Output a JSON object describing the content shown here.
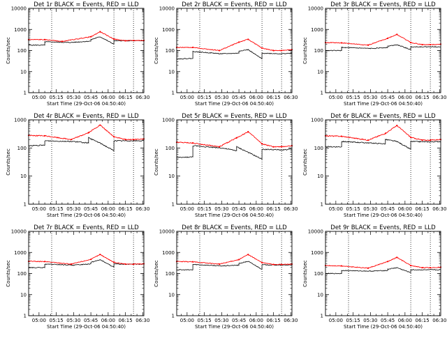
{
  "colors": {
    "events": "#000000",
    "lld": "#ff0000",
    "background": "#ffffff",
    "axes": "#000000"
  },
  "chart_data": [
    {
      "type": "line",
      "title": "Det 1r BLACK = Events, RED = LLD",
      "xlabel": "Start Time (29-Oct-06 04:50:40)",
      "ylabel": "Counts/sec",
      "y_scale": "log",
      "ylim": [
        1,
        10000
      ],
      "xlim": [
        "04:51",
        "06:31"
      ],
      "x_tick_labels": [
        "05:00",
        "05:15",
        "05:30",
        "05:45",
        "06:00",
        "06:15",
        "06:30"
      ],
      "y_tick_labels": [
        "1",
        "10",
        "100",
        "1000",
        "10000"
      ],
      "vlines": [
        "05:11",
        "06:05",
        "06:22"
      ],
      "series": [
        {
          "name": "Events",
          "color": "#000000",
          "x": [
            "04:51",
            "05:05",
            "05:05",
            "05:27",
            "05:45",
            "05:45",
            "05:53",
            "06:05",
            "06:05",
            "06:22",
            "06:31"
          ],
          "y": [
            180,
            180,
            260,
            240,
            280,
            330,
            450,
            200,
            290,
            290,
            290
          ]
        },
        {
          "name": "LLD",
          "color": "#ff0000",
          "x": [
            "04:51",
            "05:05",
            "05:20",
            "05:45",
            "05:53",
            "06:05",
            "06:15",
            "06:22",
            "06:31"
          ],
          "y": [
            330,
            330,
            270,
            450,
            780,
            350,
            290,
            300,
            300
          ]
        }
      ]
    },
    {
      "type": "line",
      "title": "Det 2r BLACK = Events, RED = LLD",
      "xlabel": "Start Time (29-Oct-06 04:50:40)",
      "ylabel": "Counts/sec",
      "y_scale": "log",
      "ylim": [
        1,
        10000
      ],
      "xlim": [
        "04:51",
        "06:31"
      ],
      "x_tick_labels": [
        "05:00",
        "05:15",
        "05:30",
        "05:45",
        "06:00",
        "06:15",
        "06:30"
      ],
      "y_tick_labels": [
        "1",
        "10",
        "100",
        "1000",
        "10000"
      ],
      "vlines": [
        "05:11",
        "06:05",
        "06:22"
      ],
      "series": [
        {
          "name": "Events",
          "color": "#000000",
          "x": [
            "04:51",
            "05:05",
            "05:05",
            "05:30",
            "05:45",
            "05:45",
            "05:53",
            "06:05",
            "06:05",
            "06:22",
            "06:31"
          ],
          "y": [
            40,
            42,
            90,
            70,
            75,
            95,
            110,
            40,
            75,
            70,
            75
          ]
        },
        {
          "name": "LLD",
          "color": "#ff0000",
          "x": [
            "04:51",
            "05:05",
            "05:28",
            "05:45",
            "05:53",
            "06:05",
            "06:15",
            "06:22",
            "06:31"
          ],
          "y": [
            140,
            140,
            100,
            250,
            340,
            130,
            100,
            100,
            110
          ]
        }
      ]
    },
    {
      "type": "line",
      "title": "Det 3r BLACK = Events, RED = LLD",
      "xlabel": "Start Time (29-Oct-06 04:50:40)",
      "ylabel": "Counts/sec",
      "y_scale": "log",
      "ylim": [
        1,
        10000
      ],
      "xlim": [
        "04:51",
        "06:31"
      ],
      "x_tick_labels": [
        "05:00",
        "05:15",
        "05:30",
        "05:45",
        "06:00",
        "06:15",
        "06:30"
      ],
      "y_tick_labels": [
        "1",
        "10",
        "100",
        "1000",
        "10000"
      ],
      "vlines": [
        "05:11",
        "06:05",
        "06:22"
      ],
      "series": [
        {
          "name": "Events",
          "color": "#000000",
          "x": [
            "04:51",
            "05:05",
            "05:05",
            "05:30",
            "05:45",
            "05:45",
            "05:53",
            "06:05",
            "06:05",
            "06:22",
            "06:31"
          ],
          "y": [
            100,
            100,
            140,
            125,
            140,
            160,
            190,
            110,
            150,
            150,
            150
          ]
        },
        {
          "name": "LLD",
          "color": "#ff0000",
          "x": [
            "04:51",
            "05:05",
            "05:28",
            "05:45",
            "05:53",
            "06:05",
            "06:15",
            "06:22",
            "06:31"
          ],
          "y": [
            240,
            230,
            180,
            380,
            580,
            240,
            190,
            190,
            200
          ]
        }
      ]
    },
    {
      "type": "line",
      "title": "Det 4r BLACK = Events, RED = LLD",
      "xlabel": "Start Time (29-Oct-06 04:50:40)",
      "ylabel": "Counts/sec",
      "y_scale": "log",
      "ylim": [
        1,
        1000
      ],
      "xlim": [
        "04:51",
        "06:31"
      ],
      "x_tick_labels": [
        "05:00",
        "05:15",
        "05:30",
        "05:45",
        "06:00",
        "06:15",
        "06:30"
      ],
      "y_tick_labels": [
        "1",
        "10",
        "100",
        "1000"
      ],
      "vlines": [
        "05:11",
        "06:05",
        "06:22"
      ],
      "series": [
        {
          "name": "Events",
          "color": "#000000",
          "x": [
            "04:51",
            "05:05",
            "05:05",
            "05:30",
            "05:43",
            "05:43",
            "05:53",
            "06:05",
            "06:05",
            "06:22",
            "06:31"
          ],
          "y": [
            120,
            125,
            180,
            170,
            150,
            230,
            150,
            80,
            180,
            180,
            180
          ]
        },
        {
          "name": "LLD",
          "color": "#ff0000",
          "x": [
            "04:51",
            "05:05",
            "05:28",
            "05:43",
            "05:53",
            "06:05",
            "06:15",
            "06:22",
            "06:31"
          ],
          "y": [
            280,
            270,
            200,
            350,
            650,
            250,
            200,
            200,
            210
          ]
        }
      ]
    },
    {
      "type": "line",
      "title": "Det 5r BLACK = Events, RED = LLD",
      "xlabel": "Start Time (29-Oct-06 04:50:40)",
      "ylabel": "Counts/sec",
      "y_scale": "log",
      "ylim": [
        1,
        1000
      ],
      "xlim": [
        "04:51",
        "06:31"
      ],
      "x_tick_labels": [
        "05:00",
        "05:15",
        "05:30",
        "05:45",
        "06:00",
        "06:15",
        "06:30"
      ],
      "y_tick_labels": [
        "1",
        "10",
        "100",
        "1000"
      ],
      "vlines": [
        "05:11",
        "06:05",
        "06:22"
      ],
      "series": [
        {
          "name": "Events",
          "color": "#000000",
          "x": [
            "04:51",
            "05:05",
            "05:05",
            "05:30",
            "05:43",
            "05:43",
            "05:53",
            "06:05",
            "06:05",
            "06:22",
            "06:31"
          ],
          "y": [
            45,
            48,
            120,
            100,
            80,
            110,
            70,
            40,
            90,
            85,
            90
          ]
        },
        {
          "name": "LLD",
          "color": "#ff0000",
          "x": [
            "04:51",
            "05:05",
            "05:28",
            "05:43",
            "05:53",
            "06:05",
            "06:15",
            "06:22",
            "06:31"
          ],
          "y": [
            160,
            150,
            110,
            230,
            380,
            140,
            110,
            110,
            120
          ]
        }
      ]
    },
    {
      "type": "line",
      "title": "Det 6r BLACK = Events, RED = LLD",
      "xlabel": "Start Time (29-Oct-06 04:50:40)",
      "ylabel": "Counts/sec",
      "y_scale": "log",
      "ylim": [
        1,
        1000
      ],
      "xlim": [
        "04:51",
        "06:31"
      ],
      "x_tick_labels": [
        "05:00",
        "05:15",
        "05:30",
        "05:45",
        "06:00",
        "06:15",
        "06:30"
      ],
      "y_tick_labels": [
        "1",
        "10",
        "100",
        "1000"
      ],
      "vlines": [
        "05:11",
        "06:05",
        "06:22"
      ],
      "series": [
        {
          "name": "Events",
          "color": "#000000",
          "x": [
            "04:51",
            "05:05",
            "05:05",
            "05:30",
            "05:43",
            "05:43",
            "05:53",
            "06:05",
            "06:05",
            "06:22",
            "06:31"
          ],
          "y": [
            110,
            110,
            170,
            150,
            140,
            200,
            170,
            90,
            170,
            165,
            170
          ]
        },
        {
          "name": "LLD",
          "color": "#ff0000",
          "x": [
            "04:51",
            "05:05",
            "05:28",
            "05:43",
            "05:53",
            "06:05",
            "06:15",
            "06:22",
            "06:31"
          ],
          "y": [
            270,
            260,
            190,
            330,
            630,
            240,
            190,
            190,
            200
          ]
        }
      ]
    },
    {
      "type": "line",
      "title": "Det 7r BLACK = Events, RED = LLD",
      "xlabel": "Start Time (29-Oct-06 04:50:40)",
      "ylabel": "Counts/sec",
      "y_scale": "log",
      "ylim": [
        1,
        10000
      ],
      "xlim": [
        "04:51",
        "06:31"
      ],
      "x_tick_labels": [
        "05:00",
        "05:15",
        "05:30",
        "05:45",
        "06:00",
        "06:15",
        "06:30"
      ],
      "y_tick_labels": [
        "1",
        "10",
        "100",
        "1000",
        "10000"
      ],
      "vlines": [
        "05:11",
        "06:05",
        "06:22"
      ],
      "series": [
        {
          "name": "Events",
          "color": "#000000",
          "x": [
            "04:51",
            "05:05",
            "05:05",
            "05:30",
            "05:45",
            "05:45",
            "05:53",
            "06:05",
            "06:05",
            "06:22",
            "06:31"
          ],
          "y": [
            190,
            190,
            280,
            250,
            290,
            340,
            450,
            200,
            280,
            280,
            280
          ]
        },
        {
          "name": "LLD",
          "color": "#ff0000",
          "x": [
            "04:51",
            "05:05",
            "05:28",
            "05:45",
            "05:53",
            "06:05",
            "06:15",
            "06:22",
            "06:31"
          ],
          "y": [
            380,
            370,
            280,
            470,
            800,
            340,
            280,
            280,
            290
          ]
        }
      ]
    },
    {
      "type": "line",
      "title": "Det 8r BLACK = Events, RED = LLD",
      "xlabel": "Start Time (29-Oct-06 04:50:40)",
      "ylabel": "Counts/sec",
      "y_scale": "log",
      "ylim": [
        1,
        10000
      ],
      "xlim": [
        "04:51",
        "06:31"
      ],
      "x_tick_labels": [
        "05:00",
        "05:15",
        "05:30",
        "05:45",
        "06:00",
        "06:15",
        "06:30"
      ],
      "y_tick_labels": [
        "1",
        "10",
        "100",
        "1000",
        "10000"
      ],
      "vlines": [
        "05:11",
        "06:05",
        "06:22"
      ],
      "series": [
        {
          "name": "Events",
          "color": "#000000",
          "x": [
            "04:51",
            "05:05",
            "05:05",
            "05:30",
            "05:45",
            "05:45",
            "05:53",
            "06:05",
            "06:05",
            "06:22",
            "06:31"
          ],
          "y": [
            150,
            150,
            270,
            230,
            250,
            300,
            380,
            160,
            260,
            250,
            260
          ]
        },
        {
          "name": "LLD",
          "color": "#ff0000",
          "x": [
            "04:51",
            "05:05",
            "05:28",
            "05:45",
            "05:53",
            "06:05",
            "06:15",
            "06:22",
            "06:31"
          ],
          "y": [
            370,
            360,
            280,
            460,
            800,
            330,
            270,
            270,
            280
          ]
        }
      ]
    },
    {
      "type": "line",
      "title": "Det 9r BLACK = Events, RED = LLD",
      "xlabel": "Start Time (29-Oct-06 04:50:40)",
      "ylabel": "Counts/sec",
      "y_scale": "log",
      "ylim": [
        1,
        10000
      ],
      "xlim": [
        "04:51",
        "06:31"
      ],
      "x_tick_labels": [
        "05:00",
        "05:15",
        "05:30",
        "05:45",
        "06:00",
        "06:15",
        "06:30"
      ],
      "y_tick_labels": [
        "1",
        "10",
        "100",
        "1000",
        "10000"
      ],
      "vlines": [
        "05:11",
        "06:05",
        "06:22"
      ],
      "series": [
        {
          "name": "Events",
          "color": "#000000",
          "x": [
            "04:51",
            "05:05",
            "05:05",
            "05:30",
            "05:45",
            "05:45",
            "05:53",
            "06:05",
            "06:05",
            "06:22",
            "06:31"
          ],
          "y": [
            100,
            100,
            140,
            130,
            140,
            160,
            190,
            110,
            150,
            150,
            150
          ]
        },
        {
          "name": "LLD",
          "color": "#ff0000",
          "x": [
            "04:51",
            "05:05",
            "05:28",
            "05:45",
            "05:53",
            "06:05",
            "06:15",
            "06:22",
            "06:31"
          ],
          "y": [
            240,
            230,
            180,
            370,
            580,
            240,
            190,
            190,
            200
          ]
        }
      ]
    }
  ]
}
